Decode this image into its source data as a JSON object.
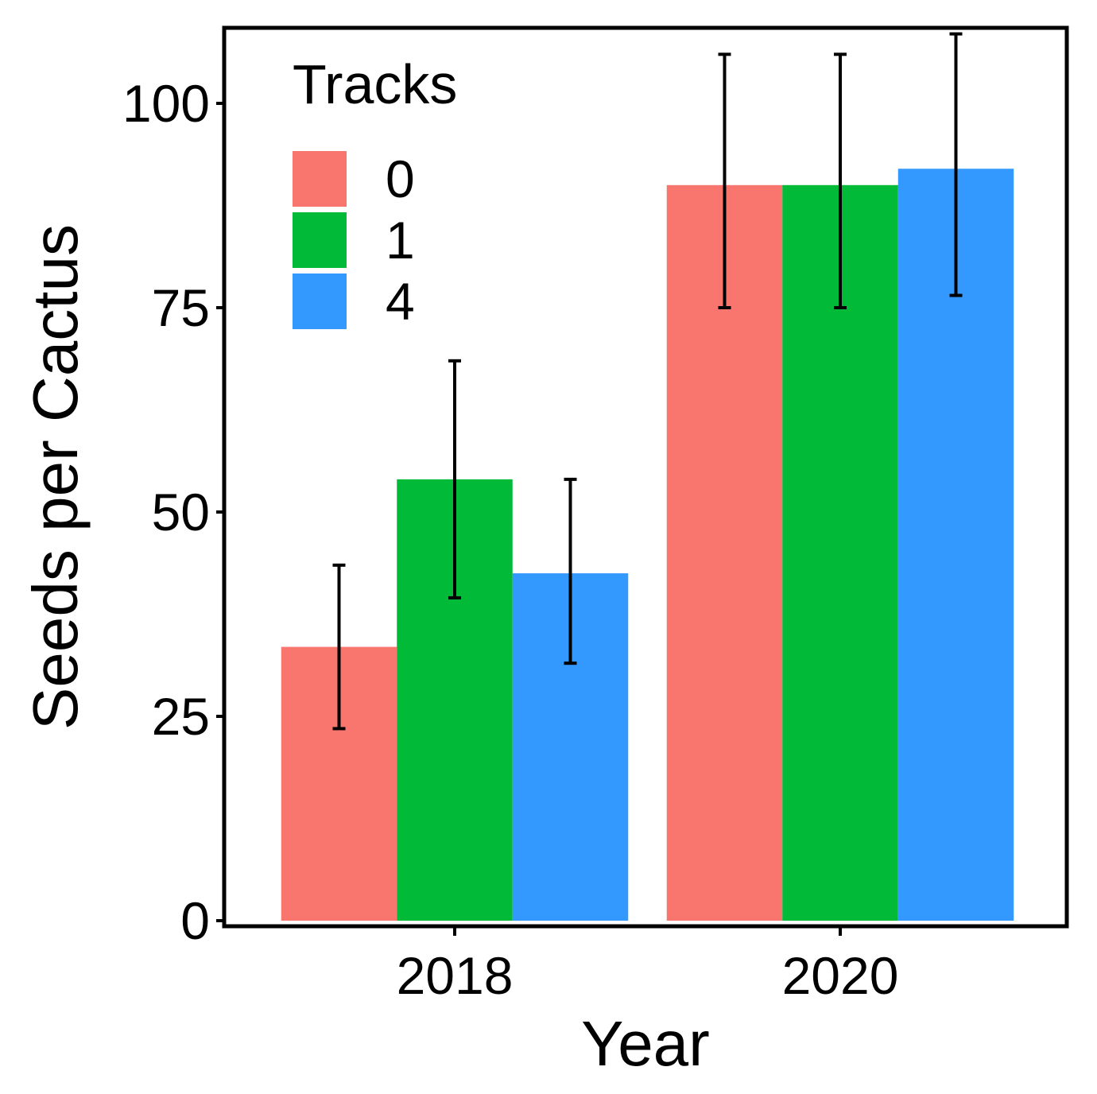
{
  "chart_data": {
    "type": "bar",
    "title": "",
    "xlabel": "Year",
    "ylabel": "Seeds per Cactus",
    "categories": [
      "2018",
      "2020"
    ],
    "ylim": [
      0,
      107
    ],
    "yticks": [
      0,
      25,
      50,
      75,
      100
    ],
    "legend": {
      "title": "Tracks",
      "placement": "top-left"
    },
    "series": [
      {
        "name": "0",
        "color": "#F8766D",
        "values": [
          33.5,
          90
        ],
        "error_low": [
          23.5,
          75
        ],
        "error_high": [
          43.5,
          106
        ]
      },
      {
        "name": "1",
        "color": "#00BA38",
        "values": [
          54,
          90
        ],
        "error_low": [
          39.5,
          75
        ],
        "error_high": [
          68.5,
          106
        ]
      },
      {
        "name": "4",
        "color": "#3399FF",
        "values": [
          42.5,
          92
        ],
        "error_low": [
          31.5,
          76.5
        ],
        "error_high": [
          54,
          108.5
        ]
      }
    ],
    "grid": false
  }
}
